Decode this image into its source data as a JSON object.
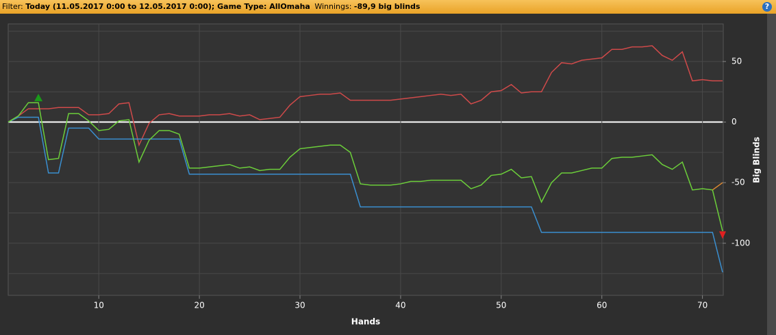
{
  "header": {
    "label": "Filter:",
    "period": "Today (11.05.2017 0:00 to 12.05.2017 0:00); Game Type: AllOmaha",
    "winnings_label": "Winnings:",
    "winnings": "-89,9 big blinds",
    "help": "?"
  },
  "chart_data": {
    "type": "line",
    "x_label": "Hands",
    "y_label": "Big Blinds",
    "x": [
      1,
      2,
      3,
      4,
      5,
      6,
      7,
      8,
      9,
      10,
      11,
      12,
      13,
      14,
      15,
      16,
      17,
      18,
      19,
      20,
      21,
      22,
      23,
      24,
      25,
      26,
      27,
      28,
      29,
      30,
      31,
      32,
      33,
      34,
      35,
      36,
      37,
      38,
      39,
      40,
      41,
      42,
      43,
      44,
      45,
      46,
      47,
      48,
      49,
      50,
      51,
      52,
      53,
      54,
      55,
      56,
      57,
      58,
      59,
      60,
      61,
      62,
      63,
      64,
      65,
      66,
      67,
      68,
      69,
      70,
      71,
      72
    ],
    "series": [
      {
        "color": "#d04a4a",
        "values": [
          0,
          5,
          11,
          11,
          11,
          12,
          12,
          12,
          6,
          6,
          7,
          15,
          16,
          -19,
          -1,
          6,
          7,
          5,
          5,
          5,
          6,
          6,
          7,
          5,
          6,
          2,
          3,
          4,
          14,
          21,
          22,
          23,
          23,
          24,
          18,
          18,
          18,
          18,
          18,
          19,
          20,
          21,
          22,
          23,
          22,
          23,
          15,
          18,
          25,
          26,
          31,
          24,
          25,
          25,
          41,
          49,
          48,
          51,
          52,
          53,
          60,
          60,
          62,
          62,
          63,
          55,
          51,
          58,
          34,
          35,
          34,
          34
        ]
      },
      {
        "color": "#3a8fd0",
        "values": [
          0,
          4,
          4,
          4,
          -42,
          -42,
          -5,
          -5,
          -5,
          -14,
          -14,
          -14,
          -14,
          -14,
          -14,
          -14,
          -14,
          -14,
          -43,
          -43,
          -43,
          -43,
          -43,
          -43,
          -43,
          -43,
          -43,
          -43,
          -43,
          -43,
          -43,
          -43,
          -43,
          -43,
          -43,
          -70,
          -70,
          -70,
          -70,
          -70,
          -70,
          -70,
          -70,
          -70,
          -70,
          -70,
          -70,
          -70,
          -70,
          -70,
          -70,
          -70,
          -70,
          -91,
          -91,
          -91,
          -91,
          -91,
          -91,
          -91,
          -91,
          -91,
          -91,
          -91,
          -91,
          -91,
          -91,
          -91,
          -91,
          -91,
          -91,
          -124
        ]
      },
      {
        "color": "#6ccf3a",
        "values": [
          0,
          5,
          16,
          16,
          -31,
          -30,
          7,
          7,
          1,
          -7,
          -6,
          1,
          2,
          -33,
          -15,
          -7,
          -7,
          -10,
          -38,
          -38,
          -37,
          -36,
          -35,
          -38,
          -37,
          -40,
          -39,
          -39,
          -29,
          -22,
          -21,
          -20,
          -19,
          -19,
          -25,
          -51,
          -52,
          -52,
          -52,
          -51,
          -49,
          -49,
          -48,
          -48,
          -48,
          -48,
          -55,
          -52,
          -44,
          -43,
          -39,
          -46,
          -45,
          -66,
          -50,
          -42,
          -42,
          -40,
          -38,
          -38,
          -30,
          -29,
          -29,
          -28,
          -27,
          -35,
          -39,
          -33,
          -56,
          -55,
          -56,
          -89.9
        ]
      },
      {
        "color": "#e08a30",
        "values": [
          null,
          null,
          null,
          null,
          null,
          null,
          null,
          null,
          null,
          null,
          null,
          null,
          null,
          null,
          null,
          null,
          null,
          null,
          null,
          null,
          null,
          null,
          null,
          null,
          null,
          null,
          null,
          null,
          null,
          null,
          null,
          null,
          null,
          null,
          null,
          null,
          null,
          null,
          null,
          null,
          null,
          null,
          null,
          null,
          null,
          null,
          null,
          null,
          null,
          null,
          null,
          null,
          null,
          null,
          null,
          null,
          null,
          null,
          null,
          null,
          null,
          null,
          null,
          null,
          null,
          null,
          null,
          null,
          null,
          null,
          -56,
          -50
        ]
      }
    ],
    "markers": [
      {
        "x": 4,
        "value": 20,
        "color": "#1a9a1a",
        "shape": "up"
      },
      {
        "x": 72,
        "value": -93,
        "color": "#e02020",
        "shape": "down"
      }
    ],
    "xlim": [
      1,
      72
    ],
    "ylim": [
      -143,
      81
    ],
    "xticks": [
      10,
      20,
      30,
      40,
      50,
      60,
      70
    ],
    "yticks": [
      -100,
      -50,
      0,
      50
    ],
    "ygrid": [
      -125,
      -75,
      -25,
      25,
      75
    ],
    "grid": true,
    "zero_line_color": "#ffffff"
  }
}
